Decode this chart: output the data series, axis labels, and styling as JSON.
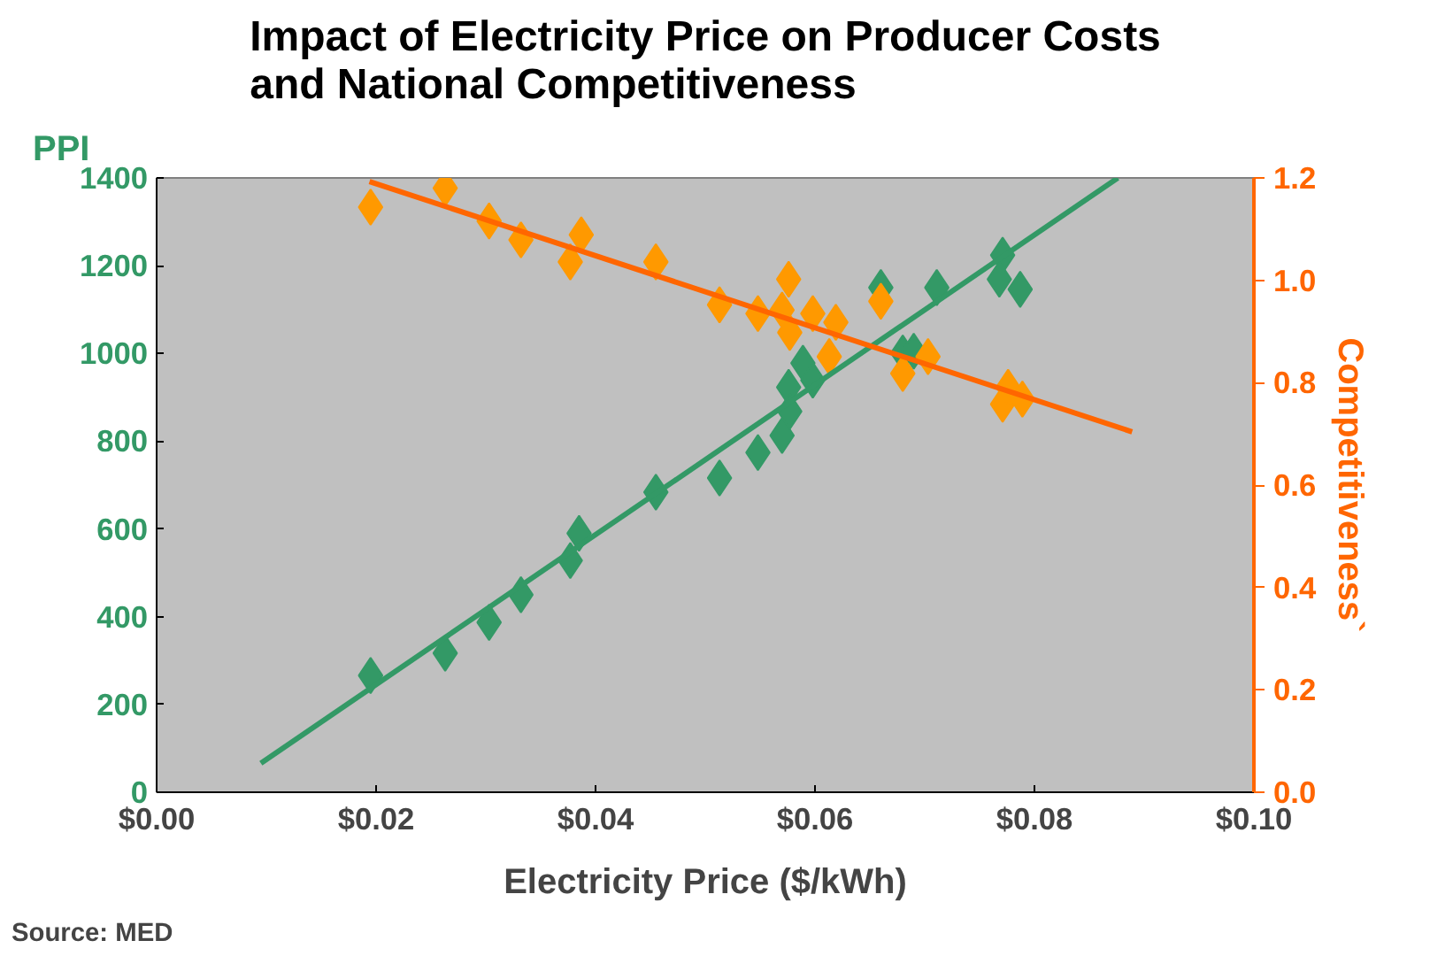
{
  "chart_data": {
    "type": "scatter",
    "title": "Impact of Electricity Price on Producer Costs and National Competitiveness",
    "xlabel": "Electricity Price ($/kWh)",
    "ylabel": "PPI",
    "y2label": "Competitiveness`",
    "annotations": [
      "Source: MED"
    ],
    "marker": "diamond",
    "grid": false,
    "xlim": [
      0,
      0.1
    ],
    "xticks": [
      {
        "value": 0,
        "label": "$0.00"
      },
      {
        "value": 0.02,
        "label": "$0.02"
      },
      {
        "value": 0.04,
        "label": "$0.04"
      },
      {
        "value": 0.06,
        "label": "$0.06"
      },
      {
        "value": 0.08,
        "label": "$0.08"
      },
      {
        "value": 0.1,
        "label": "$0.10"
      }
    ],
    "ylim": [
      0,
      1400
    ],
    "yticks": [
      0,
      200,
      400,
      600,
      800,
      1000,
      1200,
      1400
    ],
    "y2lim": [
      0,
      1.2
    ],
    "y2ticks": [
      {
        "value": 0,
        "label": "0.0"
      },
      {
        "value": 0.2,
        "label": "0.2"
      },
      {
        "value": 0.4,
        "label": "0.4"
      },
      {
        "value": 0.6,
        "label": "0.6"
      },
      {
        "value": 0.8,
        "label": "0.8"
      },
      {
        "value": 1.0,
        "label": "1.0"
      },
      {
        "value": 1.2,
        "label": "1.2"
      }
    ],
    "series": [
      {
        "color": "#339966",
        "x": [
          0.0195,
          0.0263,
          0.0303,
          0.0332,
          0.0377,
          0.0385,
          0.0455,
          0.0513,
          0.0548,
          0.057,
          0.0576,
          0.0577,
          0.0589,
          0.0598,
          0.066,
          0.068,
          0.069,
          0.0711,
          0.0771,
          0.0768,
          0.0787
        ],
        "values": [
          266,
          317,
          387,
          450,
          528,
          590,
          684,
          716,
          774,
          813,
          923,
          868,
          978,
          939,
          1150,
          1001,
          1005,
          1150,
          1224,
          1169,
          1146
        ]
      },
      {
        "axis": "y2",
        "color": "#ff9900",
        "x": [
          0.0195,
          0.0263,
          0.0303,
          0.0332,
          0.0377,
          0.0387,
          0.0455,
          0.0513,
          0.0548,
          0.0576,
          0.057,
          0.0598,
          0.0577,
          0.0619,
          0.0613,
          0.066,
          0.068,
          0.0703,
          0.0771,
          0.0776,
          0.0789
        ],
        "values": [
          1.143,
          1.18,
          1.116,
          1.079,
          1.036,
          1.089,
          1.036,
          0.952,
          0.935,
          1.002,
          0.942,
          0.935,
          0.898,
          0.918,
          0.851,
          0.959,
          0.818,
          0.851,
          0.758,
          0.791,
          0.768
        ]
      },
      {
        "type": "line",
        "marker": "none",
        "color": "#339966",
        "x": [
          0.0095,
          0.0876
        ],
        "values": [
          66,
          1400
        ]
      },
      {
        "type": "line",
        "marker": "none",
        "axis": "y2",
        "color": "#ff6600",
        "x": [
          0.0194,
          0.0889
        ],
        "values": [
          1.193,
          0.704
        ]
      }
    ]
  }
}
